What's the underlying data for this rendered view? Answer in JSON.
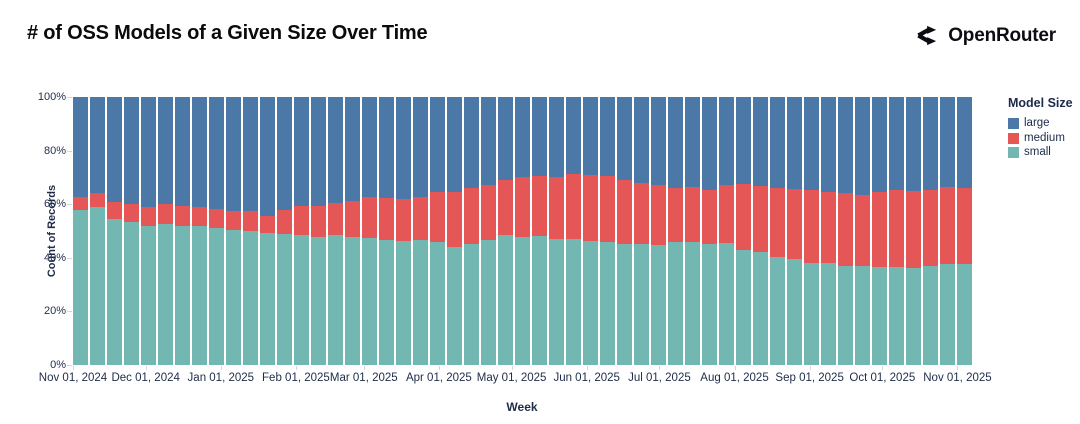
{
  "title": "# of OSS Models of a Given Size Over Time",
  "logo": {
    "text": "OpenRouter"
  },
  "legend": {
    "title": "Model Size",
    "items": [
      {
        "label": "large",
        "color": "#4c78a8"
      },
      {
        "label": "medium",
        "color": "#e45756"
      },
      {
        "label": "small",
        "color": "#72b7b2"
      }
    ]
  },
  "chart_data": {
    "type": "bar",
    "stacked": true,
    "normalized_percent": true,
    "title": "# of OSS Models of a Given Size Over Time",
    "xlabel": "Week",
    "ylabel": "Count of Records",
    "ylim": [
      0,
      100
    ],
    "grid": false,
    "legend_position": "right",
    "y_ticks": [
      {
        "value": 0,
        "label": "0%"
      },
      {
        "value": 20,
        "label": "20%"
      },
      {
        "value": 40,
        "label": "40%"
      },
      {
        "value": 60,
        "label": "60%"
      },
      {
        "value": 80,
        "label": "80%"
      },
      {
        "value": 100,
        "label": "100%"
      }
    ],
    "x_ticks": [
      {
        "label": "Nov 01, 2024",
        "day_offset": 0
      },
      {
        "label": "Dec 01, 2024",
        "day_offset": 30
      },
      {
        "label": "Jan 01, 2025",
        "day_offset": 61
      },
      {
        "label": "Feb 01, 2025",
        "day_offset": 92
      },
      {
        "label": "Mar 01, 2025",
        "day_offset": 120
      },
      {
        "label": "Apr 01, 2025",
        "day_offset": 151
      },
      {
        "label": "May 01, 2025",
        "day_offset": 181
      },
      {
        "label": "Jun 01, 2025",
        "day_offset": 212
      },
      {
        "label": "Jul 01, 2025",
        "day_offset": 242
      },
      {
        "label": "Aug 01, 2025",
        "day_offset": 273
      },
      {
        "label": "Sep 01, 2025",
        "day_offset": 304
      },
      {
        "label": "Oct 01, 2025",
        "day_offset": 334
      },
      {
        "label": "Nov 01, 2025",
        "day_offset": 365
      }
    ],
    "x_span_days": 371,
    "weeks_count": 53,
    "x_unit": "week index (weekly bars from Nov 01, 2024 through Nov 01, 2025)",
    "series": [
      {
        "name": "small",
        "color": "#72b7b2",
        "values": [
          57.8,
          58.8,
          54.4,
          53.2,
          52.0,
          52.6,
          52.0,
          51.7,
          51.0,
          50.5,
          50.0,
          49.2,
          49.0,
          48.6,
          47.7,
          48.6,
          47.7,
          47.4,
          46.7,
          46.4,
          46.7,
          45.9,
          44.1,
          45.2,
          46.7,
          48.5,
          47.7,
          48.1,
          47.0,
          47.0,
          46.1,
          45.8,
          45.3,
          45.1,
          44.9,
          45.9,
          45.8,
          45.1,
          45.5,
          43.0,
          42.1,
          40.2,
          39.6,
          38.1,
          37.9,
          36.9,
          36.9,
          36.7,
          36.7,
          36.3,
          37.1,
          37.5,
          37.8
        ]
      },
      {
        "name": "medium",
        "color": "#e45756",
        "values": [
          4.9,
          5.5,
          6.6,
          7.0,
          7.0,
          7.4,
          7.5,
          7.3,
          7.3,
          7.0,
          7.3,
          6.4,
          9.0,
          10.8,
          11.7,
          11.7,
          13.6,
          15.3,
          15.8,
          15.7,
          16.0,
          18.5,
          20.3,
          20.7,
          20.3,
          20.4,
          22.3,
          22.3,
          23.3,
          24.3,
          24.9,
          24.7,
          23.9,
          22.8,
          22.1,
          20.3,
          20.6,
          20.1,
          21.8,
          24.5,
          24.6,
          26.0,
          26.2,
          27.3,
          26.7,
          27.3,
          26.7,
          27.9,
          28.5,
          28.5,
          28.3,
          28.9,
          28.4
        ]
      },
      {
        "name": "large",
        "color": "#4c78a8",
        "values": [
          37.3,
          35.7,
          39.0,
          39.8,
          41.0,
          40.0,
          40.5,
          41.0,
          41.7,
          42.5,
          42.7,
          44.4,
          42.0,
          40.6,
          40.6,
          39.7,
          38.7,
          37.3,
          37.5,
          37.9,
          37.3,
          35.6,
          35.6,
          34.1,
          33.0,
          31.1,
          30.0,
          29.6,
          29.7,
          28.7,
          29.0,
          29.5,
          30.8,
          32.1,
          33.0,
          33.8,
          33.6,
          34.8,
          32.7,
          32.5,
          33.3,
          33.8,
          34.2,
          34.6,
          35.4,
          35.8,
          36.4,
          35.4,
          34.8,
          35.2,
          34.6,
          33.6,
          33.8
        ]
      }
    ]
  }
}
